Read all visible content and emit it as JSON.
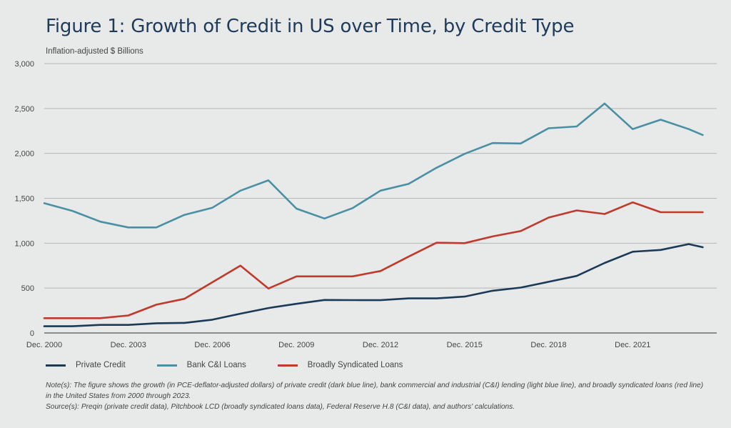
{
  "title": "Figure 1: Growth of Credit in US over Time, by Credit Type",
  "notes": "Note(s): The figure shows the growth (in PCE-deflator-adjusted dollars) of private credit (dark blue line), bank commercial and industrial (C&I) lending (light blue line), and broadly syndicated loans (red line) in the United States from 2000 through 2023.",
  "source": "Source(s): Preqin (private credit data), Pitchbook LCD (broadly syndicated loans data), Federal Reserve H.8 (C&I data), and authors' calculations.",
  "colors": {
    "background": "#e8e9e9",
    "grid": "#b5b7b8",
    "private_credit": "#1b3a57",
    "bank_ci": "#4a90a4",
    "syndicated": "#c0392b"
  },
  "chart_data": {
    "type": "line",
    "title": "Figure 1: Growth of Credit in US over Time, by Credit Type",
    "ylabel": "Inflation-adjusted $ Billions",
    "xlabel": "",
    "ylim": [
      0,
      3000
    ],
    "yticks": [
      0,
      500,
      1000,
      1500,
      2000,
      2500,
      3000
    ],
    "ytick_labels": [
      "0",
      "500",
      "1,000",
      "1,500",
      "2,000",
      "2,500",
      "3,000"
    ],
    "xlim": [
      2000,
      2024
    ],
    "xticks": [
      2000,
      2003,
      2006,
      2009,
      2012,
      2015,
      2018,
      2021
    ],
    "xtick_labels": [
      "Dec. 2000",
      "Dec. 2003",
      "Dec. 2006",
      "Dec. 2009",
      "Dec. 2012",
      "Dec. 2015",
      "Dec. 2018",
      "Dec. 2021"
    ],
    "grid": true,
    "legend_position": "bottom",
    "x": [
      2000,
      2001,
      2002,
      2003,
      2004,
      2005,
      2006,
      2007,
      2008,
      2009,
      2010,
      2011,
      2012,
      2013,
      2014,
      2015,
      2016,
      2017,
      2018,
      2019,
      2020,
      2021,
      2022,
      2023,
      2023.5
    ],
    "series": [
      {
        "name": "Private Credit",
        "color": "#1b3a57",
        "values": [
          75,
          75,
          90,
          90,
          108,
          112,
          148,
          215,
          278,
          325,
          368,
          366,
          365,
          385,
          385,
          405,
          470,
          505,
          570,
          635,
          780,
          905,
          925,
          990,
          955
        ]
      },
      {
        "name": "Bank C&I Loans",
        "color": "#4a90a4",
        "values": [
          1445,
          1360,
          1240,
          1175,
          1175,
          1315,
          1395,
          1585,
          1700,
          1385,
          1275,
          1390,
          1585,
          1660,
          1840,
          1995,
          2115,
          2110,
          2280,
          2300,
          2555,
          2270,
          2375,
          2270,
          2205
        ]
      },
      {
        "name": "Broadly Syndicated Loans",
        "color": "#c0392b",
        "values": [
          165,
          165,
          165,
          195,
          315,
          380,
          565,
          750,
          495,
          630,
          630,
          630,
          690,
          850,
          1005,
          1000,
          1075,
          1135,
          1285,
          1365,
          1325,
          1455,
          1345,
          1345,
          1345
        ]
      }
    ]
  }
}
